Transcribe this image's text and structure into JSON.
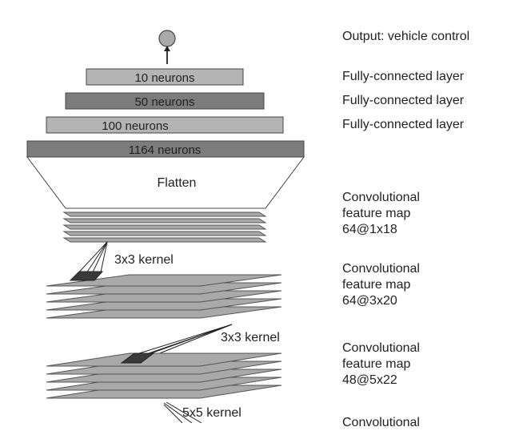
{
  "output": {
    "label": "Output: vehicle control"
  },
  "fc_layers": [
    {
      "neurons": "10 neurons",
      "label": "Fully-connected layer"
    },
    {
      "neurons": "50 neurons",
      "label": "Fully-connected layer"
    },
    {
      "neurons": "100 neurons",
      "label": "Fully-connected layer"
    },
    {
      "neurons": "1164 neurons",
      "label": ""
    }
  ],
  "flatten": {
    "label": "Flatten"
  },
  "conv_layers": [
    {
      "line1": "Convolutional",
      "line2": "feature map",
      "line3": "64@1x18"
    },
    {
      "line1": "Convolutional",
      "line2": "feature map",
      "line3": "64@3x20"
    },
    {
      "line1": "Convolutional",
      "line2": "feature map",
      "line3": "48@5x22"
    },
    {
      "line1": "Convolutional",
      "line2": "",
      "line3": ""
    }
  ],
  "kernels": [
    {
      "label": "3x3 kernel"
    },
    {
      "label": "3x3 kernel"
    },
    {
      "label": "5x5 kernel"
    }
  ],
  "colors": {
    "light_gray": "#b4b4b4",
    "dark_gray": "#7c7c7c",
    "plane_fill": "#a9a9a9",
    "plane_stroke": "#555555",
    "kernel_patch": "#3a3a3a"
  }
}
